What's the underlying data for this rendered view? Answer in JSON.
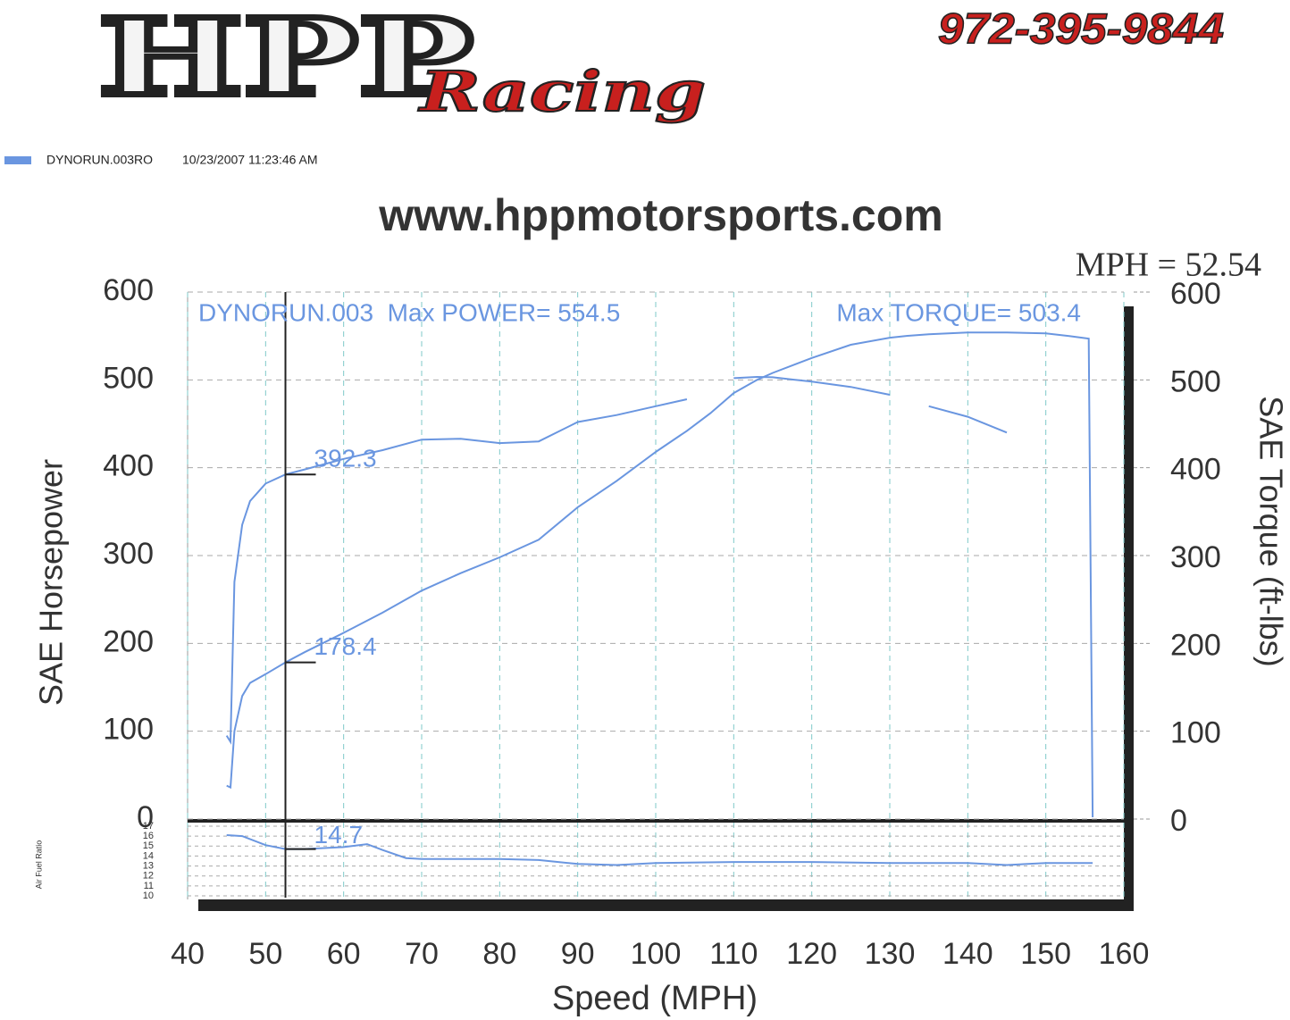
{
  "header": {
    "logo": "HPP",
    "logo_sub": "Racing",
    "phone": "972-395-9844",
    "website": "www.hppmotorsports.com"
  },
  "legend": {
    "name": "DYNORUN.003RO",
    "date": "10/23/2007 11:23:46 AM",
    "color": "#6a96e0"
  },
  "chart_data": [
    {
      "type": "line",
      "x_label": "Speed (MPH)",
      "y_label": "SAE Horsepower",
      "y2_label": "SAE Torque (ft-lbs)",
      "annotations": [
        "DYNORUN.003  Max POWER= 554.5",
        "Max TORQUE= 503.4"
      ],
      "cursor": {
        "x": 52.54,
        "label": "MPH = 52.54"
      },
      "x": [
        45,
        45.5,
        46,
        47,
        48,
        50,
        52.54,
        55,
        60,
        65,
        70,
        75,
        80,
        85,
        90,
        95,
        100,
        104,
        107,
        110,
        113,
        115,
        120,
        125,
        130,
        132,
        135,
        140,
        145,
        150,
        153,
        155.5,
        156
      ],
      "series": [
        {
          "color": "#6a96e0",
          "axis": "y",
          "values": [
            38,
            36,
            100,
            140,
            155,
            165,
            178.4,
            190,
            212,
            235,
            260,
            280,
            298,
            318,
            355,
            385,
            418,
            442,
            462,
            485,
            500,
            508,
            525,
            540,
            548,
            550,
            552,
            554,
            554,
            553,
            550,
            547,
            2
          ]
        },
        {
          "color": "#6a96e0",
          "axis": "y2",
          "values": [
            95,
            88,
            270,
            335,
            362,
            382,
            392.3,
            398,
            410,
            420,
            432,
            433,
            428,
            430,
            452,
            460,
            470,
            478,
            null,
            502,
            503.4,
            503,
            498,
            492,
            483,
            null,
            470,
            458,
            440,
            null,
            null,
            null,
            null
          ]
        }
      ],
      "xlim": [
        40,
        160
      ],
      "xticks": [
        40,
        50,
        60,
        70,
        80,
        90,
        100,
        110,
        120,
        130,
        140,
        150,
        160
      ],
      "ylim": [
        0,
        600
      ],
      "yticks": [
        0,
        100,
        200,
        300,
        400,
        500,
        600
      ],
      "y2lim": [
        0,
        600
      ],
      "y2ticks": [
        0,
        100,
        200,
        300,
        400,
        500,
        600
      ],
      "grid": true
    },
    {
      "type": "line",
      "y_label": "Air Fuel Ratio",
      "x": [
        45,
        47,
        50,
        52.54,
        55,
        60,
        63,
        65,
        68,
        70,
        80,
        85,
        90,
        95,
        100,
        110,
        120,
        130,
        140,
        145,
        150,
        156
      ],
      "series": [
        {
          "color": "#6a96e0",
          "values": [
            16.1,
            16.0,
            15.1,
            14.7,
            14.7,
            14.9,
            15.2,
            14.6,
            13.8,
            13.7,
            13.7,
            13.6,
            13.2,
            13.1,
            13.3,
            13.4,
            13.4,
            13.3,
            13.3,
            13.1,
            13.3,
            13.3
          ]
        }
      ],
      "xlim": [
        40,
        160
      ],
      "ylim": [
        10,
        17
      ],
      "yticks": [
        10,
        11,
        12,
        13,
        14,
        15,
        16,
        17
      ],
      "grid": true
    }
  ]
}
